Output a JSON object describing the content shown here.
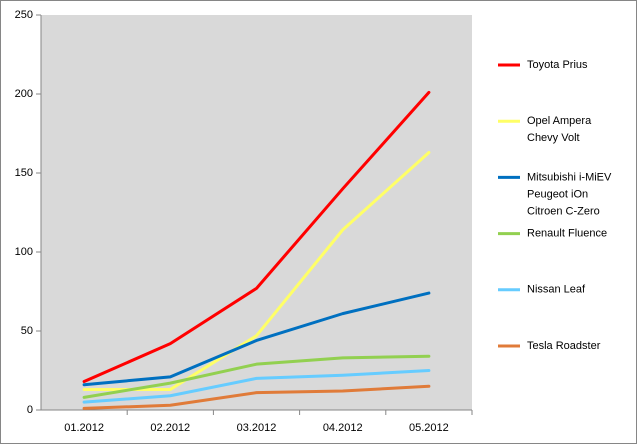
{
  "chart_data": {
    "type": "line",
    "categories": [
      "01.2012",
      "02.2012",
      "03.2012",
      "04.2012",
      "05.2012"
    ],
    "series": [
      {
        "name": [
          "Toyota Prius"
        ],
        "color": "#ff0000",
        "values": [
          18,
          42,
          77,
          140,
          201
        ]
      },
      {
        "name": [
          "Opel Ampera",
          "Chevy Volt"
        ],
        "color": "#ffff66",
        "values": [
          13,
          13,
          47,
          114,
          163
        ]
      },
      {
        "name": [
          "Mitsubishi i-MiEV",
          "Peugeot iOn",
          "Citroen C-Zero"
        ],
        "color": "#0070c0",
        "values": [
          16,
          21,
          44,
          61,
          74
        ]
      },
      {
        "name": [
          "Renault Fluence"
        ],
        "color": "#92d050",
        "values": [
          8,
          17,
          29,
          33,
          34
        ]
      },
      {
        "name": [
          "Nissan Leaf"
        ],
        "color": "#66ccff",
        "values": [
          5,
          9,
          20,
          22,
          25
        ]
      },
      {
        "name": [
          "Tesla Roadster"
        ],
        "color": "#e07b39",
        "values": [
          1,
          3,
          11,
          12,
          15
        ]
      }
    ],
    "ylim": [
      0,
      250
    ],
    "yticks": [
      0,
      50,
      100,
      150,
      200,
      250
    ],
    "grid": false
  }
}
